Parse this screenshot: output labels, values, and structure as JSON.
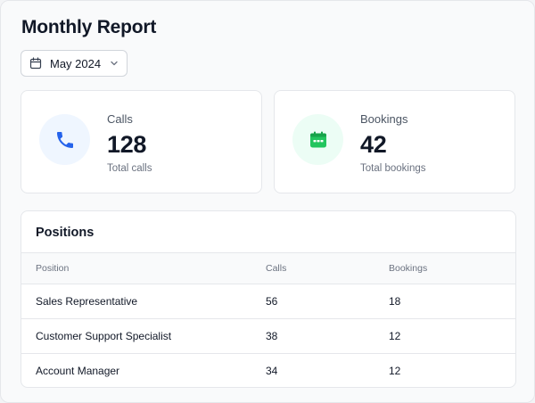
{
  "header": {
    "title": "Monthly Report",
    "month_selector": {
      "value": "May 2024",
      "icon": "calendar-icon"
    }
  },
  "stats": {
    "calls": {
      "label": "Calls",
      "value": "128",
      "caption": "Total calls",
      "icon": "phone-icon",
      "accent": "#2563eb"
    },
    "bookings": {
      "label": "Bookings",
      "value": "42",
      "caption": "Total bookings",
      "icon": "calendar-icon",
      "accent": "#22c55e"
    }
  },
  "positions": {
    "title": "Positions",
    "columns": [
      "Position",
      "Calls",
      "Bookings"
    ],
    "rows": [
      [
        "Sales Representative",
        "56",
        "18"
      ],
      [
        "Customer Support Specialist",
        "38",
        "12"
      ],
      [
        "Account Manager",
        "34",
        "12"
      ]
    ]
  }
}
